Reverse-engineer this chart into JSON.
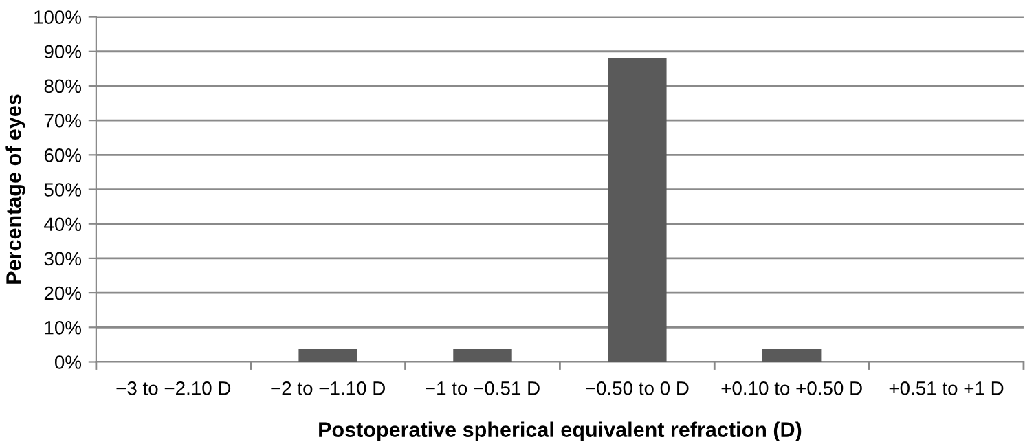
{
  "chart_data": {
    "type": "bar",
    "xlabel": "Postoperative spherical equivalent refraction (D)",
    "ylabel": "Percentage of eyes",
    "categories": [
      "−3 to −2.10 D",
      "−2 to −1.10 D",
      "−1 to −0.51 D",
      "−0.50 to 0 D",
      "+0.10 to +0.50 D",
      "+0.51 to +1 D"
    ],
    "values": [
      0,
      3.7,
      3.7,
      88,
      3.7,
      0
    ],
    "color": "#5a5a5a",
    "ylim": [
      0,
      100
    ],
    "yticks": [
      {
        "value": 0,
        "label": "0%"
      },
      {
        "value": 10,
        "label": "10%"
      },
      {
        "value": 20,
        "label": "20%"
      },
      {
        "value": 30,
        "label": "30%"
      },
      {
        "value": 40,
        "label": "40%"
      },
      {
        "value": 50,
        "label": "50%"
      },
      {
        "value": 60,
        "label": "60%"
      },
      {
        "value": 70,
        "label": "70%"
      },
      {
        "value": 80,
        "label": "80%"
      },
      {
        "value": 90,
        "label": "90%"
      },
      {
        "value": 100,
        "label": "100%"
      }
    ],
    "grid": "y"
  }
}
